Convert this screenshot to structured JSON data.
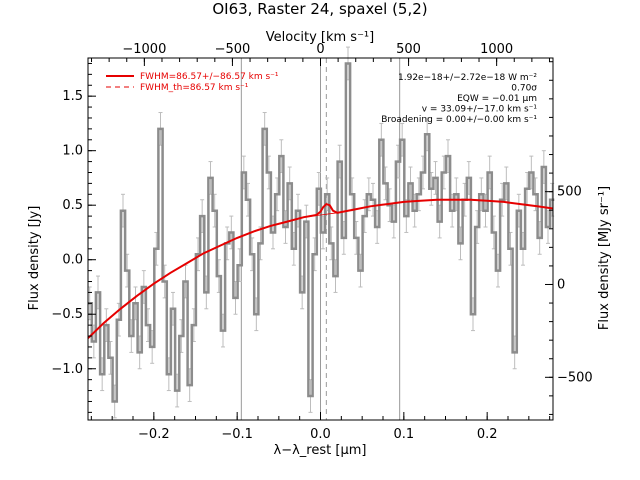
{
  "chart_data": {
    "type": "line",
    "title": "OI63, Raster 24, spaxel (5,2)",
    "xlabel": "λ−λ_rest [μm]",
    "ylabel": "Flux density [Jy]",
    "top_xlabel": "Velocity [km s⁻¹]",
    "right_ylabel": "Flux density [MJy sr⁻¹]",
    "xlim": [
      -0.279,
      0.279
    ],
    "ylim": [
      -1.47,
      1.85
    ],
    "velocity_lim": [
      -1320,
      1320
    ],
    "right_ylim": [
      -730,
      1220
    ],
    "x_ticks": [
      -0.2,
      -0.1,
      0.0,
      0.1,
      0.2
    ],
    "x_tick_labels": [
      "−0.2",
      "−0.1",
      "0.0",
      "0.1",
      "0.2"
    ],
    "y_ticks": [
      -1.0,
      -0.5,
      0.0,
      0.5,
      1.0,
      1.5
    ],
    "y_tick_labels": [
      "−1.0",
      "−0.5",
      "0.0",
      "0.5",
      "1.0",
      "1.5"
    ],
    "velocity_ticks": [
      -1000,
      -500,
      0,
      500,
      1000
    ],
    "velocity_tick_labels": [
      "−1000",
      "−500",
      "0",
      "500",
      "1000"
    ],
    "right_ticks": [
      -500,
      0,
      500
    ],
    "right_tick_labels": [
      "−500",
      "0",
      "500"
    ],
    "vertical_lines": [
      -0.095,
      0.0,
      0.095
    ],
    "vertical_dashed": [
      0.007
    ],
    "legend_position": "top-left",
    "legend": [
      {
        "label": "FWHM=86.57+/−86.57 km s⁻¹",
        "style": "solid",
        "color": "#e60000"
      },
      {
        "label": "FWHM_th=86.57 km s⁻¹",
        "style": "dashed",
        "color": "#e60000"
      }
    ],
    "annotations": [
      "1.92e−18+/−2.72e−18 W m⁻²",
      "0.70σ",
      "EQW = −0.01 μm",
      "v = 33.09+/−17.0 km s⁻¹",
      "Broadening = 0.00+/−0.00 km s⁻¹"
    ],
    "series": [
      {
        "style": "step",
        "color": "#8c8c8c",
        "x": [
          -0.277,
          -0.272,
          -0.267,
          -0.262,
          -0.257,
          -0.252,
          -0.247,
          -0.242,
          -0.237,
          -0.232,
          -0.227,
          -0.222,
          -0.217,
          -0.212,
          -0.207,
          -0.202,
          -0.197,
          -0.192,
          -0.187,
          -0.182,
          -0.177,
          -0.172,
          -0.167,
          -0.162,
          -0.157,
          -0.152,
          -0.147,
          -0.142,
          -0.137,
          -0.132,
          -0.127,
          -0.122,
          -0.117,
          -0.112,
          -0.107,
          -0.102,
          -0.097,
          -0.092,
          -0.087,
          -0.082,
          -0.077,
          -0.072,
          -0.067,
          -0.062,
          -0.057,
          -0.052,
          -0.047,
          -0.042,
          -0.037,
          -0.032,
          -0.027,
          -0.022,
          -0.017,
          -0.012,
          -0.007,
          -0.002,
          0.003,
          0.008,
          0.013,
          0.018,
          0.023,
          0.028,
          0.033,
          0.038,
          0.043,
          0.048,
          0.053,
          0.058,
          0.063,
          0.068,
          0.073,
          0.078,
          0.083,
          0.088,
          0.093,
          0.098,
          0.103,
          0.108,
          0.113,
          0.118,
          0.123,
          0.128,
          0.133,
          0.138,
          0.143,
          0.148,
          0.153,
          0.158,
          0.163,
          0.168,
          0.173,
          0.178,
          0.183,
          0.188,
          0.193,
          0.198,
          0.203,
          0.208,
          0.213,
          0.218,
          0.223,
          0.228,
          0.233,
          0.238,
          0.243,
          0.248,
          0.253,
          0.258,
          0.263,
          0.268,
          0.273,
          0.278
        ],
        "y": [
          -0.4,
          -0.75,
          -0.3,
          -1.05,
          -0.6,
          -0.9,
          -1.3,
          -0.55,
          0.45,
          -0.1,
          -0.7,
          -0.4,
          -0.85,
          -0.25,
          -0.6,
          -0.8,
          0.1,
          1.2,
          -0.2,
          -1.05,
          -0.45,
          -1.2,
          -0.7,
          -0.2,
          -1.15,
          -0.6,
          0.05,
          0.4,
          -0.3,
          0.75,
          0.45,
          -0.15,
          -0.65,
          0.15,
          0.25,
          -0.35,
          -0.05,
          0.8,
          0.55,
          0.05,
          -0.5,
          0.15,
          1.2,
          0.8,
          0.25,
          0.6,
          0.95,
          0.3,
          0.7,
          0.1,
          0.45,
          -0.3,
          0.35,
          -1.25,
          0.05,
          0.65,
          0.25,
          0.6,
          0.15,
          -0.15,
          0.9,
          0.2,
          1.8,
          0.6,
          0.2,
          -0.1,
          0.4,
          0.6,
          0.55,
          0.3,
          1.1,
          0.7,
          0.5,
          0.35,
          0.9,
          1.1,
          0.4,
          0.7,
          0.45,
          0.6,
          0.8,
          1.15,
          0.65,
          0.75,
          0.35,
          0.8,
          0.95,
          0.45,
          0.6,
          0.15,
          0.55,
          0.75,
          -0.5,
          0.3,
          0.6,
          0.45,
          0.8,
          0.25,
          -0.1,
          0.55,
          0.7,
          0.1,
          -0.85,
          0.45,
          0.1,
          0.65,
          0.8,
          0.6,
          0.2,
          0.85,
          0.3,
          0.55
        ],
        "err": [
          0.15,
          0.15,
          0.15,
          0.15,
          0.15,
          0.15,
          0.15,
          0.15,
          0.15,
          0.15,
          0.15,
          0.15,
          0.15,
          0.15,
          0.15,
          0.15,
          0.15,
          0.15,
          0.15,
          0.15,
          0.15,
          0.15,
          0.15,
          0.15,
          0.15,
          0.15,
          0.15,
          0.15,
          0.15,
          0.15,
          0.15,
          0.15,
          0.15,
          0.15,
          0.15,
          0.15,
          0.15,
          0.15,
          0.15,
          0.15,
          0.15,
          0.15,
          0.15,
          0.15,
          0.15,
          0.15,
          0.15,
          0.15,
          0.15,
          0.15,
          0.15,
          0.15,
          0.15,
          0.15,
          0.15,
          0.15,
          0.15,
          0.15,
          0.15,
          0.15,
          0.15,
          0.15,
          0.15,
          0.15,
          0.15,
          0.15,
          0.15,
          0.15,
          0.15,
          0.15,
          0.15,
          0.15,
          0.15,
          0.15,
          0.15,
          0.15,
          0.15,
          0.15,
          0.15,
          0.15,
          0.15,
          0.15,
          0.15,
          0.15,
          0.15,
          0.15,
          0.15,
          0.15,
          0.15,
          0.15,
          0.15,
          0.15,
          0.15,
          0.15,
          0.15,
          0.15,
          0.15,
          0.15,
          0.15,
          0.15,
          0.15,
          0.15,
          0.15,
          0.15,
          0.15,
          0.15,
          0.15,
          0.15,
          0.15,
          0.15,
          0.15,
          0.15
        ]
      },
      {
        "style": "solid",
        "color": "#e60000",
        "x": [
          -0.279,
          -0.26,
          -0.24,
          -0.22,
          -0.2,
          -0.18,
          -0.16,
          -0.14,
          -0.12,
          -0.1,
          -0.08,
          -0.06,
          -0.04,
          -0.02,
          -0.005,
          0.0,
          0.003,
          0.007,
          0.011,
          0.015,
          0.02,
          0.04,
          0.06,
          0.08,
          0.1,
          0.12,
          0.14,
          0.16,
          0.18,
          0.2,
          0.22,
          0.24,
          0.26,
          0.279
        ],
        "y": [
          -0.72,
          -0.58,
          -0.45,
          -0.33,
          -0.22,
          -0.12,
          -0.03,
          0.06,
          0.13,
          0.2,
          0.26,
          0.31,
          0.35,
          0.39,
          0.41,
          0.44,
          0.48,
          0.51,
          0.5,
          0.45,
          0.43,
          0.46,
          0.49,
          0.51,
          0.53,
          0.54,
          0.55,
          0.55,
          0.55,
          0.54,
          0.53,
          0.51,
          0.49,
          0.47
        ]
      },
      {
        "style": "thin",
        "color": "#e60000",
        "x": [
          -0.279,
          -0.26,
          -0.24,
          -0.22,
          -0.2,
          -0.18,
          -0.16,
          -0.14,
          -0.12,
          -0.1,
          -0.08,
          -0.06,
          -0.04,
          -0.02,
          0.0,
          0.02,
          0.04,
          0.06,
          0.08,
          0.1,
          0.12,
          0.14,
          0.16,
          0.18,
          0.2,
          0.22,
          0.24,
          0.26,
          0.279
        ],
        "y": [
          -0.72,
          -0.58,
          -0.45,
          -0.33,
          -0.22,
          -0.12,
          -0.03,
          0.06,
          0.13,
          0.2,
          0.26,
          0.31,
          0.35,
          0.39,
          0.41,
          0.43,
          0.46,
          0.49,
          0.51,
          0.53,
          0.54,
          0.55,
          0.55,
          0.55,
          0.54,
          0.53,
          0.51,
          0.49,
          0.47
        ]
      }
    ]
  }
}
